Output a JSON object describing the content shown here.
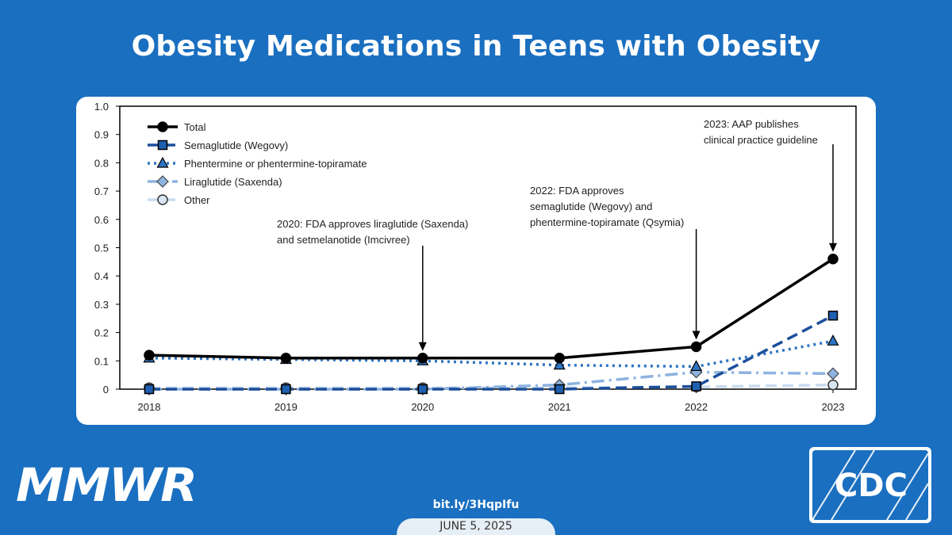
{
  "header": {
    "title": "Obesity Medications in Teens with Obesity"
  },
  "footer": {
    "brand": "MMWR",
    "link": "bit.ly/3HqpIfu",
    "date": "JUNE 5, 2025",
    "logo_text": "CDC"
  },
  "colors": {
    "background": "#1a6fc0",
    "total": "#000000",
    "semaglutide": "#1c4f9c",
    "phentermine": "#2f74c2",
    "liraglutide": "#8db3df",
    "other": "#c9dbee"
  },
  "chart_data": {
    "type": "line",
    "title": "",
    "xlabel": "",
    "ylabel": "",
    "x": [
      "2018",
      "2019",
      "2020",
      "2021",
      "2022",
      "2023"
    ],
    "ylim": [
      0,
      1.0
    ],
    "yticks": [
      "0",
      "0.1",
      "0.2",
      "0.3",
      "0.4",
      "0.5",
      "0.6",
      "0.7",
      "0.8",
      "0.9",
      "1.0"
    ],
    "series": [
      {
        "name": "Total",
        "marker": "circle",
        "style": "solid",
        "color": "#000000",
        "fill": "#000000",
        "values": [
          0.12,
          0.11,
          0.11,
          0.11,
          0.15,
          0.46
        ]
      },
      {
        "name": "Semaglutide (Wegovy)",
        "marker": "square",
        "style": "dashed",
        "color": "#1c4f9c",
        "fill": "#1f5fb0",
        "values": [
          0.0,
          0.0,
          0.0,
          0.0,
          0.01,
          0.26
        ]
      },
      {
        "name": "Phentermine or phentermine-topiramate",
        "marker": "triangle",
        "style": "dotted",
        "color": "#2f74c2",
        "fill": "#2f74c2",
        "values": [
          0.11,
          0.105,
          0.1,
          0.085,
          0.08,
          0.17
        ]
      },
      {
        "name": "Liraglutide (Saxenda)",
        "marker": "diamond",
        "style": "dashdot",
        "color": "#8db3df",
        "fill": "#8db3df",
        "values": [
          0.0,
          0.0,
          0.0,
          0.015,
          0.06,
          0.055
        ]
      },
      {
        "name": "Other",
        "marker": "circle",
        "style": "dashed",
        "color": "#c9dbee",
        "fill": "#d9e5f2",
        "values": [
          0.005,
          0.005,
          0.005,
          0.005,
          0.008,
          0.015
        ]
      }
    ],
    "annotations": [
      {
        "x": "2020",
        "y": 0.11,
        "lines": [
          "2020: FDA approves liraglutide (Saxenda)",
          "and setmelanotide (Imcivree)"
        ]
      },
      {
        "x": "2022",
        "y": 0.15,
        "lines": [
          "2022: FDA approves",
          "semaglutide (Wegovy) and",
          "phentermine-topiramate (Qsymia)"
        ]
      },
      {
        "x": "2023",
        "y": 0.46,
        "lines": [
          "2023: AAP publishes",
          "clinical practice guideline"
        ]
      }
    ],
    "legend_position": "top-left"
  }
}
